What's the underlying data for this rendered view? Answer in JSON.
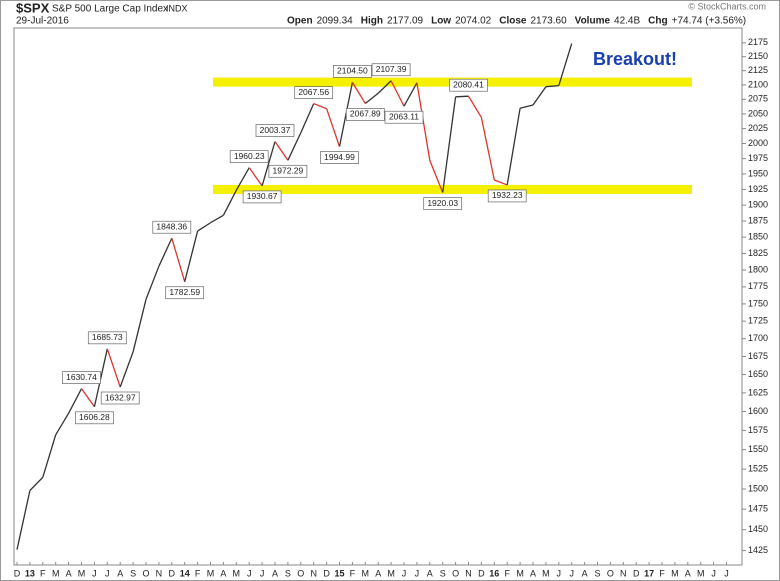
{
  "header": {
    "symbol": "$SPX",
    "name": "S&P 500 Large Cap Index",
    "exchange": "INDX",
    "date": "29-Jul-2016",
    "copyright": "© StockCharts.com",
    "stats": [
      {
        "label": "Open",
        "value": "2099.34"
      },
      {
        "label": "High",
        "value": "2177.09"
      },
      {
        "label": "Low",
        "value": "2074.02"
      },
      {
        "label": "Close",
        "value": "2173.60"
      },
      {
        "label": "Volume",
        "value": "42.4B"
      },
      {
        "label": "Chg",
        "value": "+74.74 (+3.56%)"
      }
    ]
  },
  "chart_data": {
    "type": "line",
    "annotation": "Breakout!",
    "color": "#333333",
    "down_color": "#e0342a",
    "band_color": "#f5f000",
    "annotation_color": "#1a3fb0",
    "log": true,
    "ylim": [
      1408,
      2202
    ],
    "yticks": [
      1425,
      1450,
      1475,
      1500,
      1525,
      1550,
      1575,
      1600,
      1625,
      1650,
      1675,
      1700,
      1725,
      1750,
      1775,
      1800,
      1825,
      1850,
      1875,
      1900,
      1925,
      1950,
      1975,
      2000,
      2025,
      2050,
      2075,
      2100,
      2125,
      2150,
      2175
    ],
    "bands": [
      2105,
      1925
    ],
    "categories": [
      "D",
      "13",
      "F",
      "M",
      "A",
      "M",
      "J",
      "J",
      "A",
      "S",
      "O",
      "N",
      "D",
      "14",
      "F",
      "M",
      "A",
      "M",
      "J",
      "J",
      "A",
      "S",
      "O",
      "N",
      "D",
      "15",
      "F",
      "M",
      "A",
      "M",
      "J",
      "J",
      "A",
      "S",
      "O",
      "N",
      "D",
      "16",
      "F",
      "M",
      "A",
      "M",
      "J",
      "J",
      "A",
      "S",
      "O",
      "N",
      "D",
      "17",
      "F",
      "M",
      "A",
      "M",
      "J",
      "J"
    ],
    "values": [
      1426.19,
      1498.11,
      1514.68,
      1569.19,
      1597.57,
      1630.74,
      1606.28,
      1685.73,
      1632.97,
      1681.55,
      1756.54,
      1805.81,
      1848.36,
      1782.59,
      1859.45,
      1872.34,
      1883.95,
      1923.57,
      1960.23,
      1930.67,
      2003.37,
      1972.29,
      2018.05,
      2067.56,
      2058.9,
      1994.99,
      2104.5,
      2067.89,
      2085.51,
      2107.39,
      2063.11,
      2103.84,
      1972.18,
      1920.03,
      2079.36,
      2080.41,
      2043.94,
      1940.24,
      1932.23,
      2059.74,
      2065.3,
      2096.95,
      2098.86,
      2173.6,
      null,
      null,
      null,
      null,
      null,
      null,
      null,
      null,
      null,
      null,
      null,
      null
    ],
    "value_labels": [
      null,
      null,
      null,
      null,
      null,
      "1630.74",
      "1606.28",
      "1685.73",
      "1632.97",
      null,
      null,
      null,
      "1848.36",
      "1782.59",
      null,
      null,
      null,
      null,
      "1960.23",
      "1930.67",
      "2003.37",
      "1972.29",
      null,
      "2067.56",
      null,
      "1994.99",
      "2104.50",
      "2067.89",
      null,
      "2107.39",
      "2063.11",
      null,
      null,
      "1920.03",
      null,
      "2080.41",
      null,
      null,
      "1932.23",
      null,
      null,
      null,
      null,
      null,
      null,
      null,
      null,
      null,
      null,
      null,
      null,
      null,
      null,
      null,
      null,
      null
    ]
  }
}
